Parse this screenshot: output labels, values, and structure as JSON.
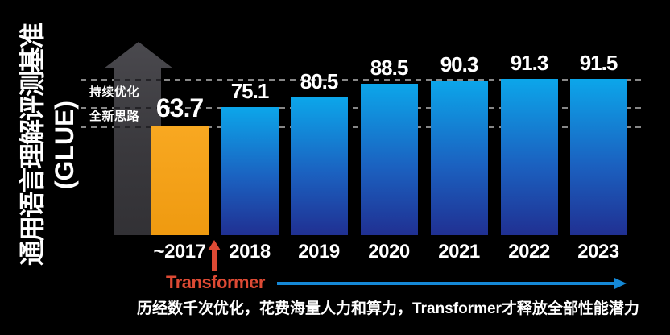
{
  "slide": {
    "background": "#000000"
  },
  "side_title": {
    "line1": "通用语言理解评测基准",
    "line2": "(GLUE)"
  },
  "growth_arrow": {
    "label_top": "持续优化",
    "label_bottom": "全新思路"
  },
  "transformer": {
    "label": "Transformer"
  },
  "caption": {
    "text": "历经数千次优化，花费海量人力和算力，Transformer才释放全部性能潜力"
  },
  "colors": {
    "background": "#000000",
    "bar_blue_top": "#0ca6ea",
    "bar_blue_mid": "#1b61c0",
    "bar_blue_bottom": "#203092",
    "bar_orange_top": "#f8a821",
    "bar_orange_bottom": "#ef9a10",
    "growth_arrow_gray": "#3e3d41",
    "accent_red": "#dd4a34",
    "timeline_blue": "#1588d6",
    "gridline_gray": "#a0a0a0",
    "text_white": "#ffffff"
  },
  "chart_data": {
    "type": "bar",
    "categories": [
      "~2017",
      "2018",
      "2019",
      "2020",
      "2021",
      "2022",
      "2023"
    ],
    "values": [
      63.7,
      75.1,
      80.5,
      88.5,
      90.3,
      91.3,
      91.5
    ],
    "series_name": "GLUE score",
    "title": "通用语言理解评测基准(GLUE)",
    "ylim": [
      0,
      100
    ],
    "axes_hidden": true,
    "grid": "dashed-horizontal",
    "gridline_values": [
      91.5,
      75.1,
      63.7
    ],
    "highlight_category": "~2017",
    "highlight_color": "orange",
    "annotations": [
      "持续优化",
      "全新思路",
      "Transformer"
    ]
  }
}
